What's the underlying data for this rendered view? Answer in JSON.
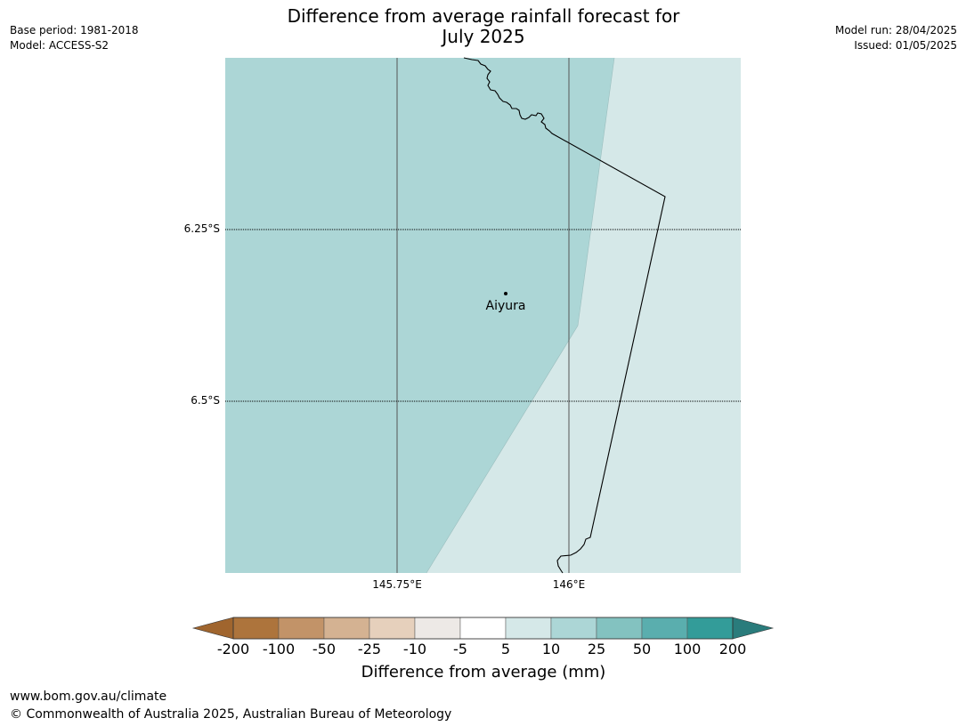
{
  "header": {
    "title_line1": "Difference from average rainfall forecast for",
    "title_line2": "July 2025",
    "base_period": "Base period: 1981-2018",
    "model": "Model: ACCESS-S2",
    "model_run": "Model run: 28/04/2025",
    "issued": "Issued: 01/05/2025"
  },
  "map": {
    "latitude_labels": [
      "6.25°S",
      "6.5°S"
    ],
    "longitude_labels": [
      "145.75°E",
      "146°E"
    ],
    "place": {
      "name": "Aiyura"
    },
    "regions": [
      {
        "category": "10 to 25",
        "color": "#acd6d6"
      },
      {
        "category": "5 to 10",
        "color": "#d5e8e8"
      }
    ],
    "gridline_color": "#555555",
    "coastline_color": "#000000"
  },
  "colorbar": {
    "title": "Difference from average (mm)",
    "tick_labels": [
      "-200",
      "-100",
      "-50",
      "-25",
      "-10",
      "-5",
      "5",
      "10",
      "25",
      "50",
      "100",
      "200"
    ],
    "bins": [
      {
        "color": "#a0652e"
      },
      {
        "color": "#ad743c"
      },
      {
        "color": "#c29368"
      },
      {
        "color": "#d4b292"
      },
      {
        "color": "#e6d0bc"
      },
      {
        "color": "#ede9e6"
      },
      {
        "color": "#ffffff"
      },
      {
        "color": "#d5e8e8"
      },
      {
        "color": "#acd6d6"
      },
      {
        "color": "#83c2c0"
      },
      {
        "color": "#5aaeae"
      },
      {
        "color": "#339c99"
      },
      {
        "color": "#2a7c7c"
      }
    ]
  },
  "footer": {
    "website": "www.bom.gov.au/climate",
    "copyright": "© Commonwealth of Australia 2025, Australian Bureau of Meteorology"
  }
}
